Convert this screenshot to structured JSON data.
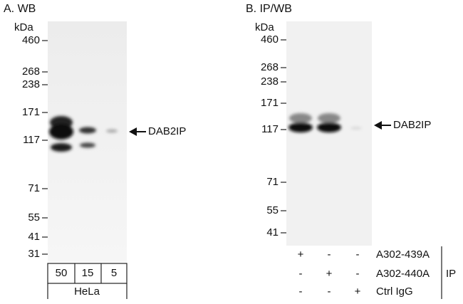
{
  "panel_a": {
    "title": "A. WB",
    "unit": "kDa",
    "markers": [
      "460",
      "268",
      "238",
      "171",
      "117",
      "71",
      "55",
      "41",
      "31"
    ],
    "target": "DAB2IP",
    "lanes": [
      "50",
      "15",
      "5"
    ],
    "cell_line": "HeLa"
  },
  "panel_b": {
    "title": "B. IP/WB",
    "unit": "kDa",
    "markers": [
      "460",
      "268",
      "238",
      "171",
      "117",
      "71",
      "55",
      "41"
    ],
    "target": "DAB2IP",
    "ip_rows": [
      {
        "symbols": [
          "+",
          "-",
          "-"
        ],
        "label": "A302-439A"
      },
      {
        "symbols": [
          "-",
          "+",
          "-"
        ],
        "label": "A302-440A"
      },
      {
        "symbols": [
          "-",
          "-",
          "+"
        ],
        "label": "Ctrl IgG"
      }
    ],
    "ip_label": "IP"
  }
}
